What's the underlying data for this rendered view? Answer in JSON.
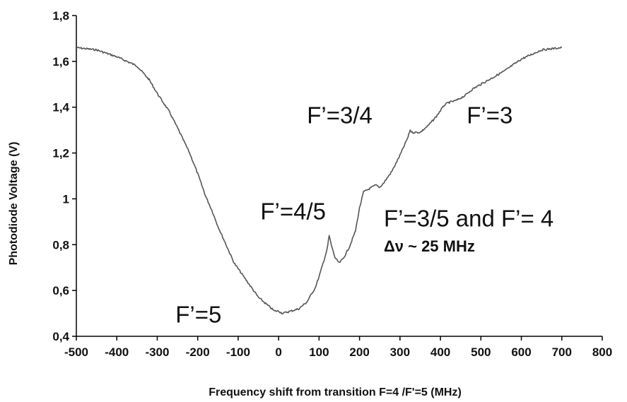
{
  "chart_data": {
    "type": "line",
    "title": "",
    "xlabel": "Frequency shift from transition F=4 /F'=5 (MHz)",
    "ylabel": "Photodiode Voltage (V)",
    "xlim": [
      -500,
      800
    ],
    "ylim": [
      0.4,
      1.8
    ],
    "x_ticks": [
      -500,
      -400,
      -300,
      -200,
      -100,
      0,
      100,
      200,
      300,
      400,
      500,
      600,
      700,
      800
    ],
    "x_tick_labels": [
      "-500",
      "-400",
      "-300",
      "-200",
      "-100",
      "0",
      "100",
      "200",
      "300",
      "400",
      "500",
      "600",
      "700",
      "800"
    ],
    "y_ticks": [
      0.4,
      0.6,
      0.8,
      1.0,
      1.2,
      1.4,
      1.6,
      1.8
    ],
    "y_tick_labels": [
      "0,4",
      "0,6",
      "0,8",
      "1",
      "1,2",
      "1,4",
      "1,6",
      "1,8"
    ],
    "grid": false,
    "line_color": "#555555",
    "series": [
      {
        "x": [
          -500,
          -450,
          -400,
          -350,
          -320,
          -300,
          -270,
          -250,
          -220,
          -200,
          -180,
          -165,
          -150,
          -130,
          -110,
          -90,
          -70,
          -50,
          -30,
          -10,
          0,
          10,
          30,
          50,
          70,
          90,
          100,
          110,
          120,
          125,
          130,
          140,
          150,
          160,
          175,
          190,
          200,
          210,
          220,
          230,
          240,
          250,
          260,
          280,
          300,
          320,
          325,
          330,
          350,
          370,
          390,
          410,
          420,
          440,
          460,
          480,
          500,
          530,
          560,
          600,
          650,
          700
        ],
        "y": [
          1.66,
          1.65,
          1.62,
          1.58,
          1.52,
          1.46,
          1.38,
          1.31,
          1.2,
          1.11,
          1.01,
          0.95,
          0.88,
          0.8,
          0.72,
          0.67,
          0.62,
          0.57,
          0.54,
          0.51,
          0.51,
          0.5,
          0.51,
          0.52,
          0.55,
          0.61,
          0.66,
          0.72,
          0.78,
          0.84,
          0.8,
          0.74,
          0.72,
          0.74,
          0.79,
          0.86,
          0.96,
          1.03,
          1.04,
          1.05,
          1.06,
          1.05,
          1.07,
          1.12,
          1.19,
          1.27,
          1.3,
          1.29,
          1.29,
          1.32,
          1.36,
          1.41,
          1.42,
          1.43,
          1.45,
          1.48,
          1.5,
          1.53,
          1.56,
          1.61,
          1.65,
          1.66
        ]
      }
    ],
    "annotations": [
      {
        "text": "F’=5",
        "x": -255,
        "y": 0.46
      },
      {
        "text": "F’=4/5",
        "x": -45,
        "y": 0.91
      },
      {
        "text": "F’=3/4",
        "x": 70,
        "y": 1.33
      },
      {
        "text": "F’=3",
        "x": 465,
        "y": 1.33
      },
      {
        "text": "F’=3/5 and F’= 4",
        "x": 260,
        "y": 0.88
      },
      {
        "text": "Δν ~ 25 MHz",
        "x": 260,
        "y": 0.77
      }
    ]
  }
}
